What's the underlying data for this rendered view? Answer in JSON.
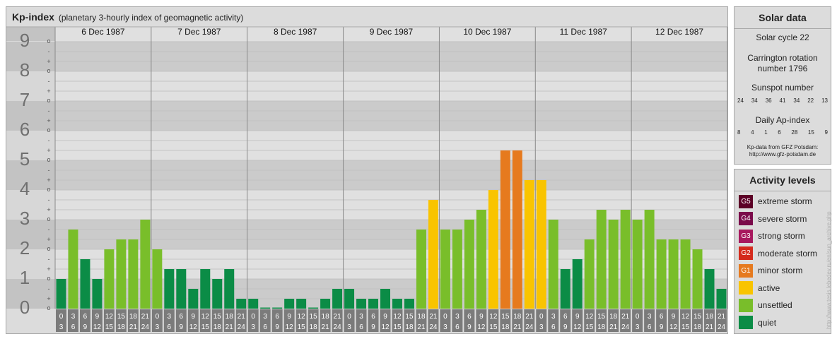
{
  "header": {
    "title": "Kp-index",
    "subtitle": "(planetary 3-hourly index of geomagnetic activity)"
  },
  "solar": {
    "title": "Solar data",
    "cycle": "Solar cycle 22",
    "carrington_line1": "Carrington rotation",
    "carrington_line2": "number 1796",
    "sunspot_label": "Sunspot number",
    "sunspot_values": [
      "24",
      "34",
      "36",
      "41",
      "34",
      "22",
      "13"
    ],
    "ap_label": "Daily Ap-index",
    "ap_values": [
      "8",
      "4",
      "1",
      "6",
      "28",
      "15",
      "9"
    ],
    "note_line1": "Kp-data from GFZ Potsdam:",
    "note_line2": "http://www.gfz-potsdam.de"
  },
  "activity": {
    "title": "Activity levels",
    "levels": [
      {
        "badge": "G5",
        "label": "extreme storm",
        "color": "#5c0026"
      },
      {
        "badge": "G4",
        "label": "severe storm",
        "color": "#7a0a4a"
      },
      {
        "badge": "G3",
        "label": "strong storm",
        "color": "#a8185e"
      },
      {
        "badge": "G2",
        "label": "moderate storm",
        "color": "#d42a1c"
      },
      {
        "badge": "G1",
        "label": "minor storm",
        "color": "#e67a1e"
      },
      {
        "badge": "",
        "label": "active",
        "color": "#f9c400"
      },
      {
        "badge": "",
        "label": "unsettled",
        "color": "#79be2a"
      },
      {
        "badge": "",
        "label": "quiet",
        "color": "#0b8c46"
      }
    ]
  },
  "watermark": "http://www.tesis.lebedev.ru/en/sun_archive.php",
  "chart_data": {
    "type": "bar",
    "ylim": [
      0,
      9
    ],
    "y_ticks": [
      "0",
      "1",
      "2",
      "3",
      "4",
      "5",
      "6",
      "7",
      "8",
      "9"
    ],
    "y_minor_labels": [
      "+",
      "o",
      "-"
    ],
    "days": [
      "6 Dec 1987",
      "7 Dec 1987",
      "8 Dec 1987",
      "9 Dec 1987",
      "10 Dec 1987",
      "11 Dec 1987",
      "12 Dec 1987"
    ],
    "interval_labels": [
      [
        "0",
        "3"
      ],
      [
        "3",
        "6"
      ],
      [
        "6",
        "9"
      ],
      [
        "9",
        "12"
      ],
      [
        "12",
        "15"
      ],
      [
        "15",
        "18"
      ],
      [
        "18",
        "21"
      ],
      [
        "21",
        "24"
      ]
    ],
    "values": [
      1.0,
      2.667,
      1.667,
      1.0,
      2.0,
      2.333,
      2.333,
      3.0,
      2.0,
      1.333,
      1.333,
      0.667,
      1.333,
      1.0,
      1.333,
      0.333,
      0.333,
      0.0,
      0.0,
      0.333,
      0.333,
      0.0,
      0.333,
      0.667,
      0.667,
      0.333,
      0.333,
      0.667,
      0.333,
      0.333,
      2.667,
      3.667,
      2.667,
      2.667,
      3.0,
      3.333,
      4.0,
      5.333,
      5.333,
      4.333,
      4.333,
      3.0,
      1.333,
      1.667,
      2.333,
      3.333,
      3.0,
      3.333,
      3.0,
      3.333,
      2.333,
      2.333,
      2.333,
      2.0,
      1.333,
      0.667
    ],
    "level_thresholds": {
      "quiet_below": 2.0,
      "unsettled_below": 3.667,
      "active_below": 4.667,
      "g1_below": 5.667
    },
    "colors": {
      "quiet": "#0b8c46",
      "unsettled": "#79be2a",
      "active": "#f9c400",
      "g1": "#e67a1e",
      "g2": "#d42a1c"
    }
  }
}
